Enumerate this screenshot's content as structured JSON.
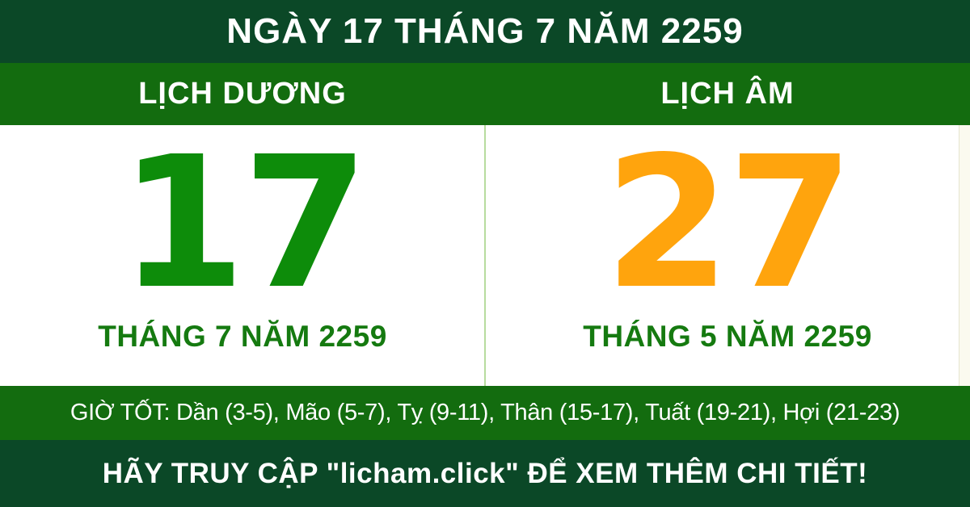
{
  "header": {
    "title": "NGÀY 17 THÁNG 7 NĂM 2259"
  },
  "calendars": {
    "solar": {
      "label": "LỊCH DƯƠNG",
      "day": "17",
      "month_year": "THÁNG 7 NĂM 2259"
    },
    "lunar": {
      "label": "LỊCH ÂM",
      "day": "27",
      "month_year": "THÁNG 5 NĂM 2259"
    }
  },
  "good_hours": {
    "text": "GIỜ TỐT: Dần (3-5), Mão (5-7), Tỵ (9-11), Thân (15-17), Tuất (19-21), Hợi (21-23)"
  },
  "footer": {
    "text": "HÃY TRUY CẬP \"licham.click\" ĐỂ XEM THÊM CHI TIẾT!"
  },
  "colors": {
    "bar_dark_green": "#0b4827",
    "bar_green": "#136c0f",
    "solar_day_green": "#0d8c0a",
    "month_label_green": "#157a10",
    "lunar_day_orange": "#ffa40d",
    "divider_light_green": "#b7dc9e",
    "page_edge_cream": "#fbfaef",
    "text_white": "#ffffff"
  }
}
